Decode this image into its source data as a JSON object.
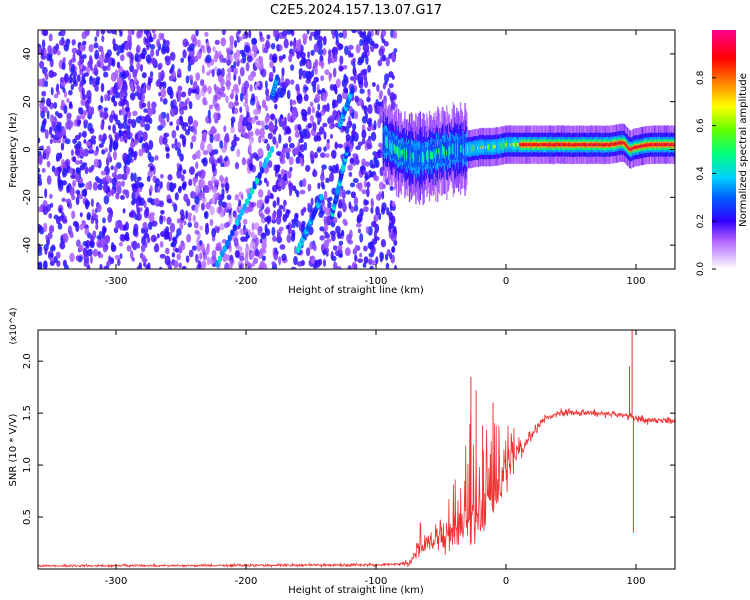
{
  "title": "C2E5.2024.157.13.07.G17",
  "chart_data": [
    {
      "type": "heatmap",
      "xlabel": "Height of straight line (km)",
      "ylabel": "Frequency (Hz)",
      "xlim": [
        -360,
        130
      ],
      "ylim": [
        -50,
        50
      ],
      "xticks": [
        -300,
        -200,
        -100,
        0,
        100
      ],
      "yticks": [
        -40,
        -20,
        0,
        20,
        40
      ],
      "grid": false,
      "colorbar": {
        "label": "Normalized spectral amplitude",
        "range": [
          0.0,
          1.0
        ],
        "ticks": [
          0.0,
          0.2,
          0.4,
          0.6,
          0.8
        ],
        "colormap": "rainbow",
        "stops": [
          [
            0.0,
            "#ffffff"
          ],
          [
            0.12,
            "#b060ff"
          ],
          [
            0.2,
            "#3000ff"
          ],
          [
            0.3,
            "#0060ff"
          ],
          [
            0.38,
            "#00d0ff"
          ],
          [
            0.48,
            "#00ff80"
          ],
          [
            0.58,
            "#60ff00"
          ],
          [
            0.68,
            "#ffff00"
          ],
          [
            0.78,
            "#ff8000"
          ],
          [
            0.88,
            "#ff0000"
          ],
          [
            1.0,
            "#ff0090"
          ]
        ]
      },
      "noise_region": {
        "x": [
          -360,
          -85
        ],
        "y": [
          -50,
          50
        ],
        "level": 0.12
      },
      "noise_streaks": [
        {
          "x": [
            -222,
            -180
          ],
          "y": [
            -48,
            0
          ]
        },
        {
          "x": [
            -160,
            -142
          ],
          "y": [
            -42,
            -20
          ]
        },
        {
          "x": [
            -134,
            -122
          ],
          "y": [
            -28,
            0
          ]
        },
        {
          "x": [
            -128,
            -118
          ],
          "y": [
            10,
            25
          ]
        },
        {
          "x": [
            -180,
            -176
          ],
          "y": [
            22,
            30
          ]
        }
      ],
      "signal_band": {
        "x_start": -95,
        "x_end": 130,
        "center_hz": [
          [
            -95,
            4
          ],
          [
            -85,
            0
          ],
          [
            -78,
            -2
          ],
          [
            -70,
            -4
          ],
          [
            -60,
            -3
          ],
          [
            -50,
            -1
          ],
          [
            -40,
            0
          ],
          [
            -30,
            0
          ],
          [
            -20,
            1
          ],
          [
            -10,
            1
          ],
          [
            0,
            2
          ],
          [
            20,
            2
          ],
          [
            40,
            2
          ],
          [
            60,
            2
          ],
          [
            80,
            2
          ],
          [
            90,
            3
          ],
          [
            95,
            0
          ],
          [
            100,
            1
          ],
          [
            110,
            2
          ],
          [
            130,
            2
          ]
        ]
      }
    },
    {
      "type": "line",
      "xlabel": "Height of straight line (km)",
      "ylabel": "SNR (10 * V/V)",
      "y_multiplier": "(x10^4)",
      "xlim": [
        -360,
        130
      ],
      "ylim": [
        0,
        23000
      ],
      "xticks": [
        -300,
        -200,
        -100,
        0,
        100
      ],
      "yticks": [
        5000,
        10000,
        15000,
        20000
      ],
      "ytick_labels": [
        "0.5",
        "1.0",
        "1.5",
        "2.0"
      ],
      "grid": false,
      "series": [
        {
          "color": "#ee3333",
          "envelope": [
            [
              -360,
              300
            ],
            [
              -200,
              350
            ],
            [
              -100,
              400
            ],
            [
              -75,
              500
            ],
            [
              -70,
              1500
            ],
            [
              -60,
              2500
            ],
            [
              -50,
              3000
            ],
            [
              -40,
              3500
            ],
            [
              -30,
              4500
            ],
            [
              -20,
              4500
            ],
            [
              -10,
              6500
            ],
            [
              0,
              9000
            ],
            [
              10,
              11500
            ],
            [
              20,
              13000
            ],
            [
              30,
              14500
            ],
            [
              40,
              15000
            ],
            [
              60,
              15100
            ],
            [
              80,
              14900
            ],
            [
              95,
              14700
            ],
            [
              100,
              14500
            ],
            [
              110,
              14300
            ],
            [
              130,
              14300
            ]
          ],
          "noise_amplitude": [
            [
              -360,
              150
            ],
            [
              -80,
              200
            ],
            [
              -70,
              1200
            ],
            [
              -40,
              2500
            ],
            [
              -30,
              4000
            ],
            [
              -20,
              3500
            ],
            [
              -10,
              3000
            ],
            [
              0,
              2000
            ],
            [
              20,
              1000
            ],
            [
              40,
              500
            ],
            [
              80,
              500
            ],
            [
              100,
              600
            ],
            [
              130,
              400
            ]
          ],
          "spikes": [
            [
              -27,
              18500
            ],
            [
              -23,
              17200
            ],
            [
              -18,
              13800
            ],
            [
              -10,
              16000
            ],
            [
              95,
              19500
            ],
            [
              97,
              23000
            ],
            [
              98,
              3500
            ]
          ]
        }
      ]
    }
  ]
}
